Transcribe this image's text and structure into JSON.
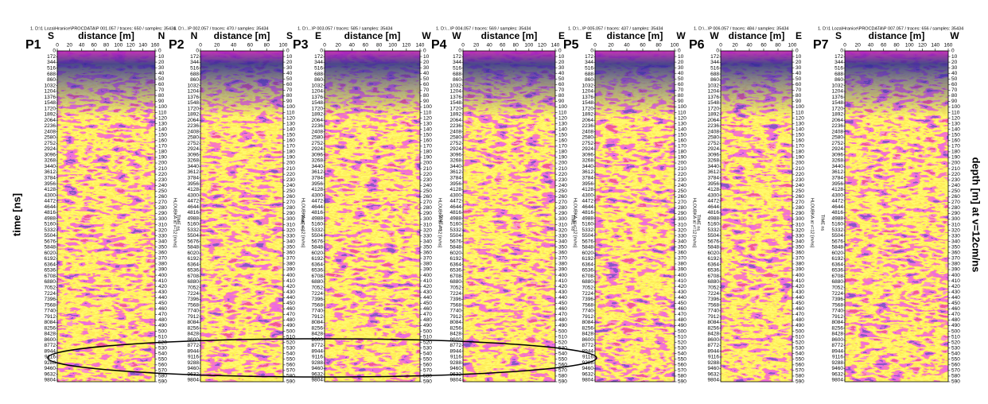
{
  "figure": {
    "y_label": "time [ns]",
    "y2_label": "depth [m] at v=12cm/ns",
    "x_label": "distance [m]",
    "inner_time_label": "TIME ns",
    "inner_depth_label": "HLOUBKA at v=12 [m/ns]",
    "time_ticks": [
      0,
      172,
      344,
      516,
      688,
      860,
      1032,
      1204,
      1376,
      1548,
      1720,
      1892,
      2064,
      2236,
      2408,
      2580,
      2752,
      2924,
      3096,
      3268,
      3440,
      3612,
      3784,
      3956,
      4128,
      4300,
      4472,
      4644,
      4816,
      4988,
      5160,
      5332,
      5504,
      5676,
      5848,
      6020,
      6192,
      6364,
      6536,
      6708,
      6880,
      7052,
      7224,
      7396,
      7568,
      7740,
      7912,
      8084,
      8256,
      8428,
      8600,
      8772,
      8944,
      9116,
      9288,
      9460,
      9632,
      9804
    ],
    "depth_ticks": [
      0,
      10,
      20,
      30,
      40,
      50,
      60,
      70,
      80,
      90,
      100,
      110,
      120,
      130,
      140,
      150,
      160,
      170,
      180,
      190,
      200,
      210,
      220,
      230,
      240,
      250,
      260,
      270,
      280,
      290,
      300,
      310,
      320,
      330,
      340,
      350,
      360,
      370,
      380,
      390,
      400,
      410,
      420,
      430,
      440,
      450,
      460,
      470,
      480,
      490,
      500,
      510,
      520,
      530,
      540,
      550,
      560,
      570,
      580,
      590
    ],
    "panels": [
      {
        "label": "P1",
        "header": "1. D:\\1 Loza\\Hranice\\PROCDATA\\P 001.057 / traces: 650 / samples: 35434",
        "left": "S",
        "right": "N",
        "xticks": [
          0,
          20,
          40,
          60,
          80,
          100,
          120,
          140,
          160
        ]
      },
      {
        "label": "P2",
        "header": "1. D:\\...\\P 002.057 / traces: 470 / samples: 35434",
        "left": "N",
        "right": "S",
        "xticks": [
          0,
          20,
          40,
          60,
          80,
          100
        ]
      },
      {
        "label": "P3",
        "header": "1. D:\\...\\P 003.057 / traces: 585 / samples: 35434",
        "left": "E",
        "right": "W",
        "xticks": [
          0,
          20,
          40,
          60,
          80,
          100,
          120,
          140
        ]
      },
      {
        "label": "P4",
        "header": "1. D:\\...\\P 004.057 / traces: 569 / samples: 35434",
        "left": "W",
        "right": "E",
        "xticks": [
          0,
          20,
          40,
          60,
          80,
          100,
          120,
          140
        ]
      },
      {
        "label": "P5",
        "header": "1. D:\\...\\P 005.057 / traces: 437 / samples: 35434",
        "left": "E",
        "right": "W",
        "xticks": [
          0,
          20,
          40,
          60,
          80,
          100
        ]
      },
      {
        "label": "P6",
        "header": "1. D:\\...\\P 006.057 / traces: 484 / samples: 35434",
        "left": "W",
        "right": "E",
        "xticks": [
          0,
          20,
          40,
          60,
          80,
          100
        ]
      },
      {
        "label": "P7",
        "header": "1. D:\\1 Loza\\Hranice\\PROCDATA\\P 007.057 / traces: 656 / samples: 35434",
        "left": "S",
        "right": "W",
        "xticks": [
          0,
          20,
          40,
          60,
          80,
          100,
          120,
          140,
          160
        ]
      }
    ]
  }
}
